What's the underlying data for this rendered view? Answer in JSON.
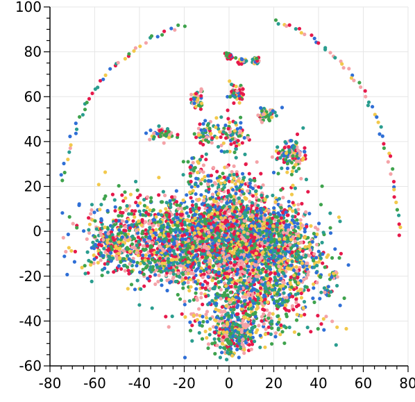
{
  "chart_data": {
    "type": "scatter",
    "title": "",
    "xlabel": "",
    "ylabel": "",
    "xlim": [
      -80,
      80
    ],
    "ylim": [
      -60,
      100
    ],
    "x_ticks": [
      -80,
      -60,
      -40,
      -20,
      0,
      20,
      40,
      60,
      80
    ],
    "y_ticks": [
      -60,
      -40,
      -20,
      0,
      20,
      40,
      60,
      80,
      100
    ],
    "x_tick_labels": [
      "-80",
      "-60",
      "-40",
      "-20",
      "0",
      "20",
      "40",
      "60",
      "80"
    ],
    "y_tick_labels": [
      "-60",
      "-40",
      "-20",
      "0",
      "20",
      "40",
      "60",
      "80",
      "100"
    ],
    "grid": true,
    "legend": "none",
    "palette": [
      "#2a9d8f",
      "#3fa34d",
      "#f2c94c",
      "#e6194b",
      "#2f6fd6",
      "#f4a3a8"
    ],
    "clusters": [
      {
        "cx": -20,
        "cy": -2,
        "sx": 22,
        "sy": 9,
        "n": 1400
      },
      {
        "cx": 2,
        "cy": -2,
        "sx": 12,
        "sy": 11,
        "n": 1300
      },
      {
        "cx": 22,
        "cy": -8,
        "sx": 10,
        "sy": 10,
        "n": 650
      },
      {
        "cx": 10,
        "cy": -30,
        "sx": 14,
        "sy": 9,
        "n": 700
      },
      {
        "cx": 2,
        "cy": -46,
        "sx": 5,
        "sy": 4,
        "n": 260
      },
      {
        "cx": -52,
        "cy": -6,
        "sx": 4,
        "sy": 4,
        "n": 160
      },
      {
        "cx": -25,
        "cy": -15,
        "sx": 9,
        "sy": 5,
        "n": 220
      },
      {
        "cx": 28,
        "cy": 34,
        "sx": 3,
        "sy": 3,
        "n": 110
      },
      {
        "cx": 4,
        "cy": 62,
        "sx": 2,
        "sy": 2,
        "n": 45
      },
      {
        "cx": 16,
        "cy": 52,
        "sx": 2,
        "sy": 1.5,
        "n": 45
      },
      {
        "cx": -14,
        "cy": 59,
        "sx": 1.5,
        "sy": 2.5,
        "n": 35
      },
      {
        "cx": -30,
        "cy": 43,
        "sx": 3,
        "sy": 1.5,
        "n": 45
      },
      {
        "cx": -11,
        "cy": 43,
        "sx": 2,
        "sy": 3,
        "n": 45
      },
      {
        "cx": 0,
        "cy": 42,
        "sx": 4,
        "sy": 4,
        "n": 80
      },
      {
        "cx": 0,
        "cy": 78,
        "sx": 1,
        "sy": 0.8,
        "n": 30
      },
      {
        "cx": 6,
        "cy": 76,
        "sx": 0.8,
        "sy": 0.8,
        "n": 20
      },
      {
        "cx": 12,
        "cy": 76,
        "sx": 0.8,
        "sy": 0.8,
        "n": 22
      },
      {
        "cx": -15,
        "cy": 28,
        "sx": 3,
        "sy": 3,
        "n": 40
      },
      {
        "cx": 0,
        "cy": 22,
        "sx": 6,
        "sy": 3,
        "n": 70
      },
      {
        "cx": 47,
        "cy": -20,
        "sx": 1,
        "sy": 1,
        "n": 15
      },
      {
        "cx": 44,
        "cy": -27,
        "sx": 1,
        "sy": 1,
        "n": 15
      }
    ],
    "arcs": [
      {
        "from": [
          -75,
          22
        ],
        "to": [
          -20,
          92
        ],
        "ctrl": [
          -65,
          78
        ],
        "n": 44
      },
      {
        "from": [
          20,
          94
        ],
        "to": [
          76,
          -2
        ],
        "ctrl": [
          72,
          78
        ],
        "n": 55
      }
    ],
    "marker_radius": 2.6
  }
}
